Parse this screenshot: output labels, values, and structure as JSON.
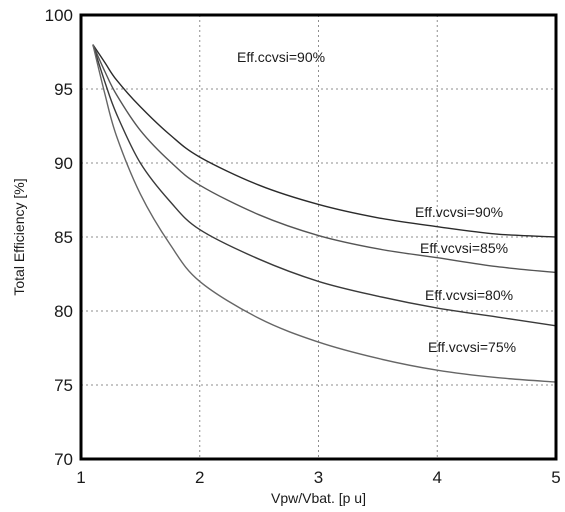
{
  "chart_data": {
    "type": "line",
    "title": "",
    "xlabel": "Vpw/Vbat. [p u]",
    "ylabel": "Total Efficiency [%]",
    "xlim": [
      1,
      5
    ],
    "ylim": [
      70,
      100
    ],
    "xticks": [
      1,
      2,
      3,
      4,
      5
    ],
    "yticks": [
      70,
      75,
      80,
      85,
      90,
      95,
      100
    ],
    "grid": true,
    "legend": "none",
    "annotation": "Eff.ccvsi=90%",
    "series": [
      {
        "name": "Eff.vcvsi=90%",
        "color": "#2b2b2b",
        "x": [
          1.1,
          1.2,
          1.3,
          1.5,
          1.75,
          2.0,
          2.5,
          3.0,
          3.5,
          4.0,
          4.5,
          5.0
        ],
        "y": [
          98.0,
          96.8,
          95.6,
          93.8,
          91.9,
          90.4,
          88.5,
          87.2,
          86.3,
          85.7,
          85.2,
          85.0
        ]
      },
      {
        "name": "Eff.vcvsi=85%",
        "color": "#555555",
        "x": [
          1.1,
          1.2,
          1.3,
          1.5,
          1.75,
          2.0,
          2.5,
          3.0,
          3.5,
          4.0,
          4.5,
          5.0
        ],
        "y": [
          98.0,
          96.2,
          94.6,
          92.2,
          90.1,
          88.5,
          86.5,
          85.1,
          84.2,
          83.6,
          83.0,
          82.6
        ]
      },
      {
        "name": "Eff.vcvsi=80%",
        "color": "#3a3a3a",
        "x": [
          1.1,
          1.2,
          1.3,
          1.5,
          1.75,
          2.0,
          2.5,
          3.0,
          3.5,
          4.0,
          4.5,
          5.0
        ],
        "y": [
          98.0,
          95.5,
          93.3,
          90.0,
          87.4,
          85.5,
          83.5,
          82.0,
          81.0,
          80.2,
          79.6,
          79.0
        ]
      },
      {
        "name": "Eff.vcvsi=75%",
        "color": "#666666",
        "x": [
          1.1,
          1.2,
          1.3,
          1.5,
          1.75,
          2.0,
          2.5,
          3.0,
          3.5,
          4.0,
          4.5,
          5.0
        ],
        "y": [
          98.0,
          94.7,
          91.8,
          87.9,
          84.5,
          82.0,
          79.5,
          77.9,
          76.8,
          76.0,
          75.5,
          75.2
        ]
      }
    ]
  }
}
